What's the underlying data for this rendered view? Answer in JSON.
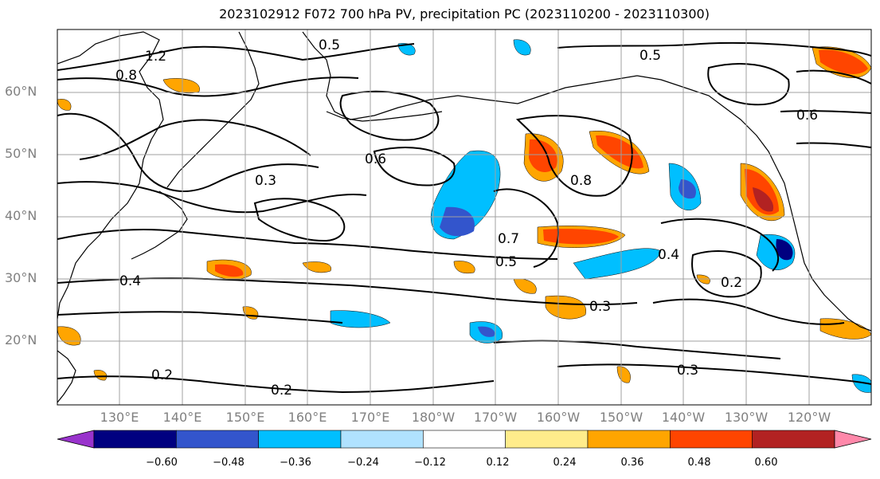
{
  "title": "2023102912 F072 700 hPa PV, precipitation PC (2023110200 - 2023110300)",
  "lat_labels": [
    "60°N",
    "50°N",
    "40°N",
    "30°N",
    "20°N"
  ],
  "lon_labels": [
    "130°E",
    "140°E",
    "150°E",
    "160°E",
    "170°E",
    "180°W",
    "170°W",
    "160°W",
    "150°W",
    "140°W",
    "130°W",
    "120°W"
  ],
  "colorbar": {
    "ticks": [
      "−0.60",
      "−0.48",
      "−0.36",
      "−0.24",
      "−0.12",
      "0.12",
      "0.24",
      "0.36",
      "0.48",
      "0.60"
    ],
    "colors": [
      "#9933cc",
      "#000080",
      "#3355cc",
      "#00bfff",
      "#b0e2ff",
      "#ffffff",
      "#ffec8b",
      "#ffa500",
      "#ff4500",
      "#b22222",
      "#ff88aa"
    ]
  },
  "contour_labels": [
    "1.2",
    "0.8",
    "0.5",
    "0.3",
    "0.4",
    "0.2",
    "0.6",
    "0.7",
    "0.5",
    "0.8",
    "0.3",
    "0.4",
    "0.2",
    "0.3",
    "0.2",
    "0.5",
    "0.6"
  ]
}
